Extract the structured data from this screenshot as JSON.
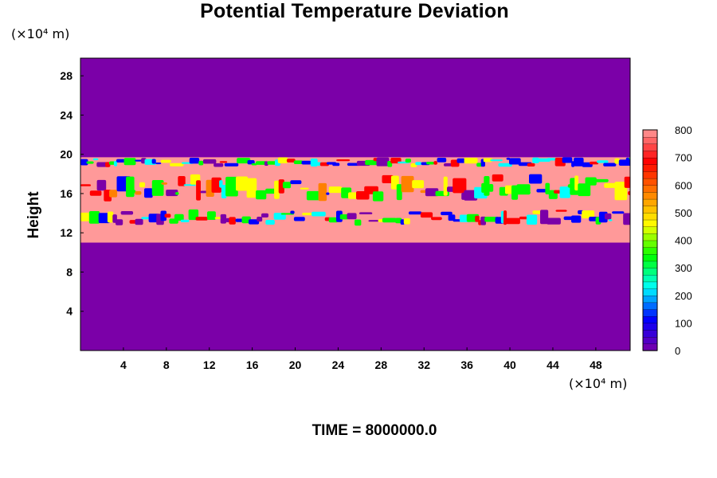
{
  "chart_data": {
    "type": "heatmap",
    "title": "Potential Temperature Deviation",
    "ylabel": "Height",
    "xlabel": "",
    "y_unit": "(×10⁴ m)",
    "x_unit": "(×10⁴ m)",
    "xlim": [
      0,
      51.2
    ],
    "ylim": [
      0,
      29.8
    ],
    "x_ticks": [
      4,
      8,
      12,
      16,
      20,
      24,
      28,
      32,
      36,
      40,
      44,
      48
    ],
    "y_ticks": [
      4,
      8,
      12,
      16,
      20,
      24,
      28
    ],
    "colorbar": {
      "min": 0,
      "max": 800,
      "ticks": [
        0,
        100,
        200,
        300,
        400,
        500,
        600,
        700,
        800
      ],
      "colormap": [
        "#7b00a8",
        "#0000ff",
        "#00ffff",
        "#00ff00",
        "#ffff00",
        "#ff8000",
        "#ff0000",
        "#ff9999"
      ]
    },
    "fields": {
      "background_value": 0,
      "background_color": "#7b00a8",
      "layer_value": 800,
      "layer_color": "#ff9999",
      "layer_y_range": [
        11,
        19.7
      ],
      "turbulent_bands_y": [
        [
          12.8,
          14.4
        ],
        [
          15.2,
          18.0
        ],
        [
          18.8,
          19.7
        ]
      ]
    },
    "grid": false,
    "legend": "colorbar-right",
    "caption": "TIME = 8000000.0"
  }
}
